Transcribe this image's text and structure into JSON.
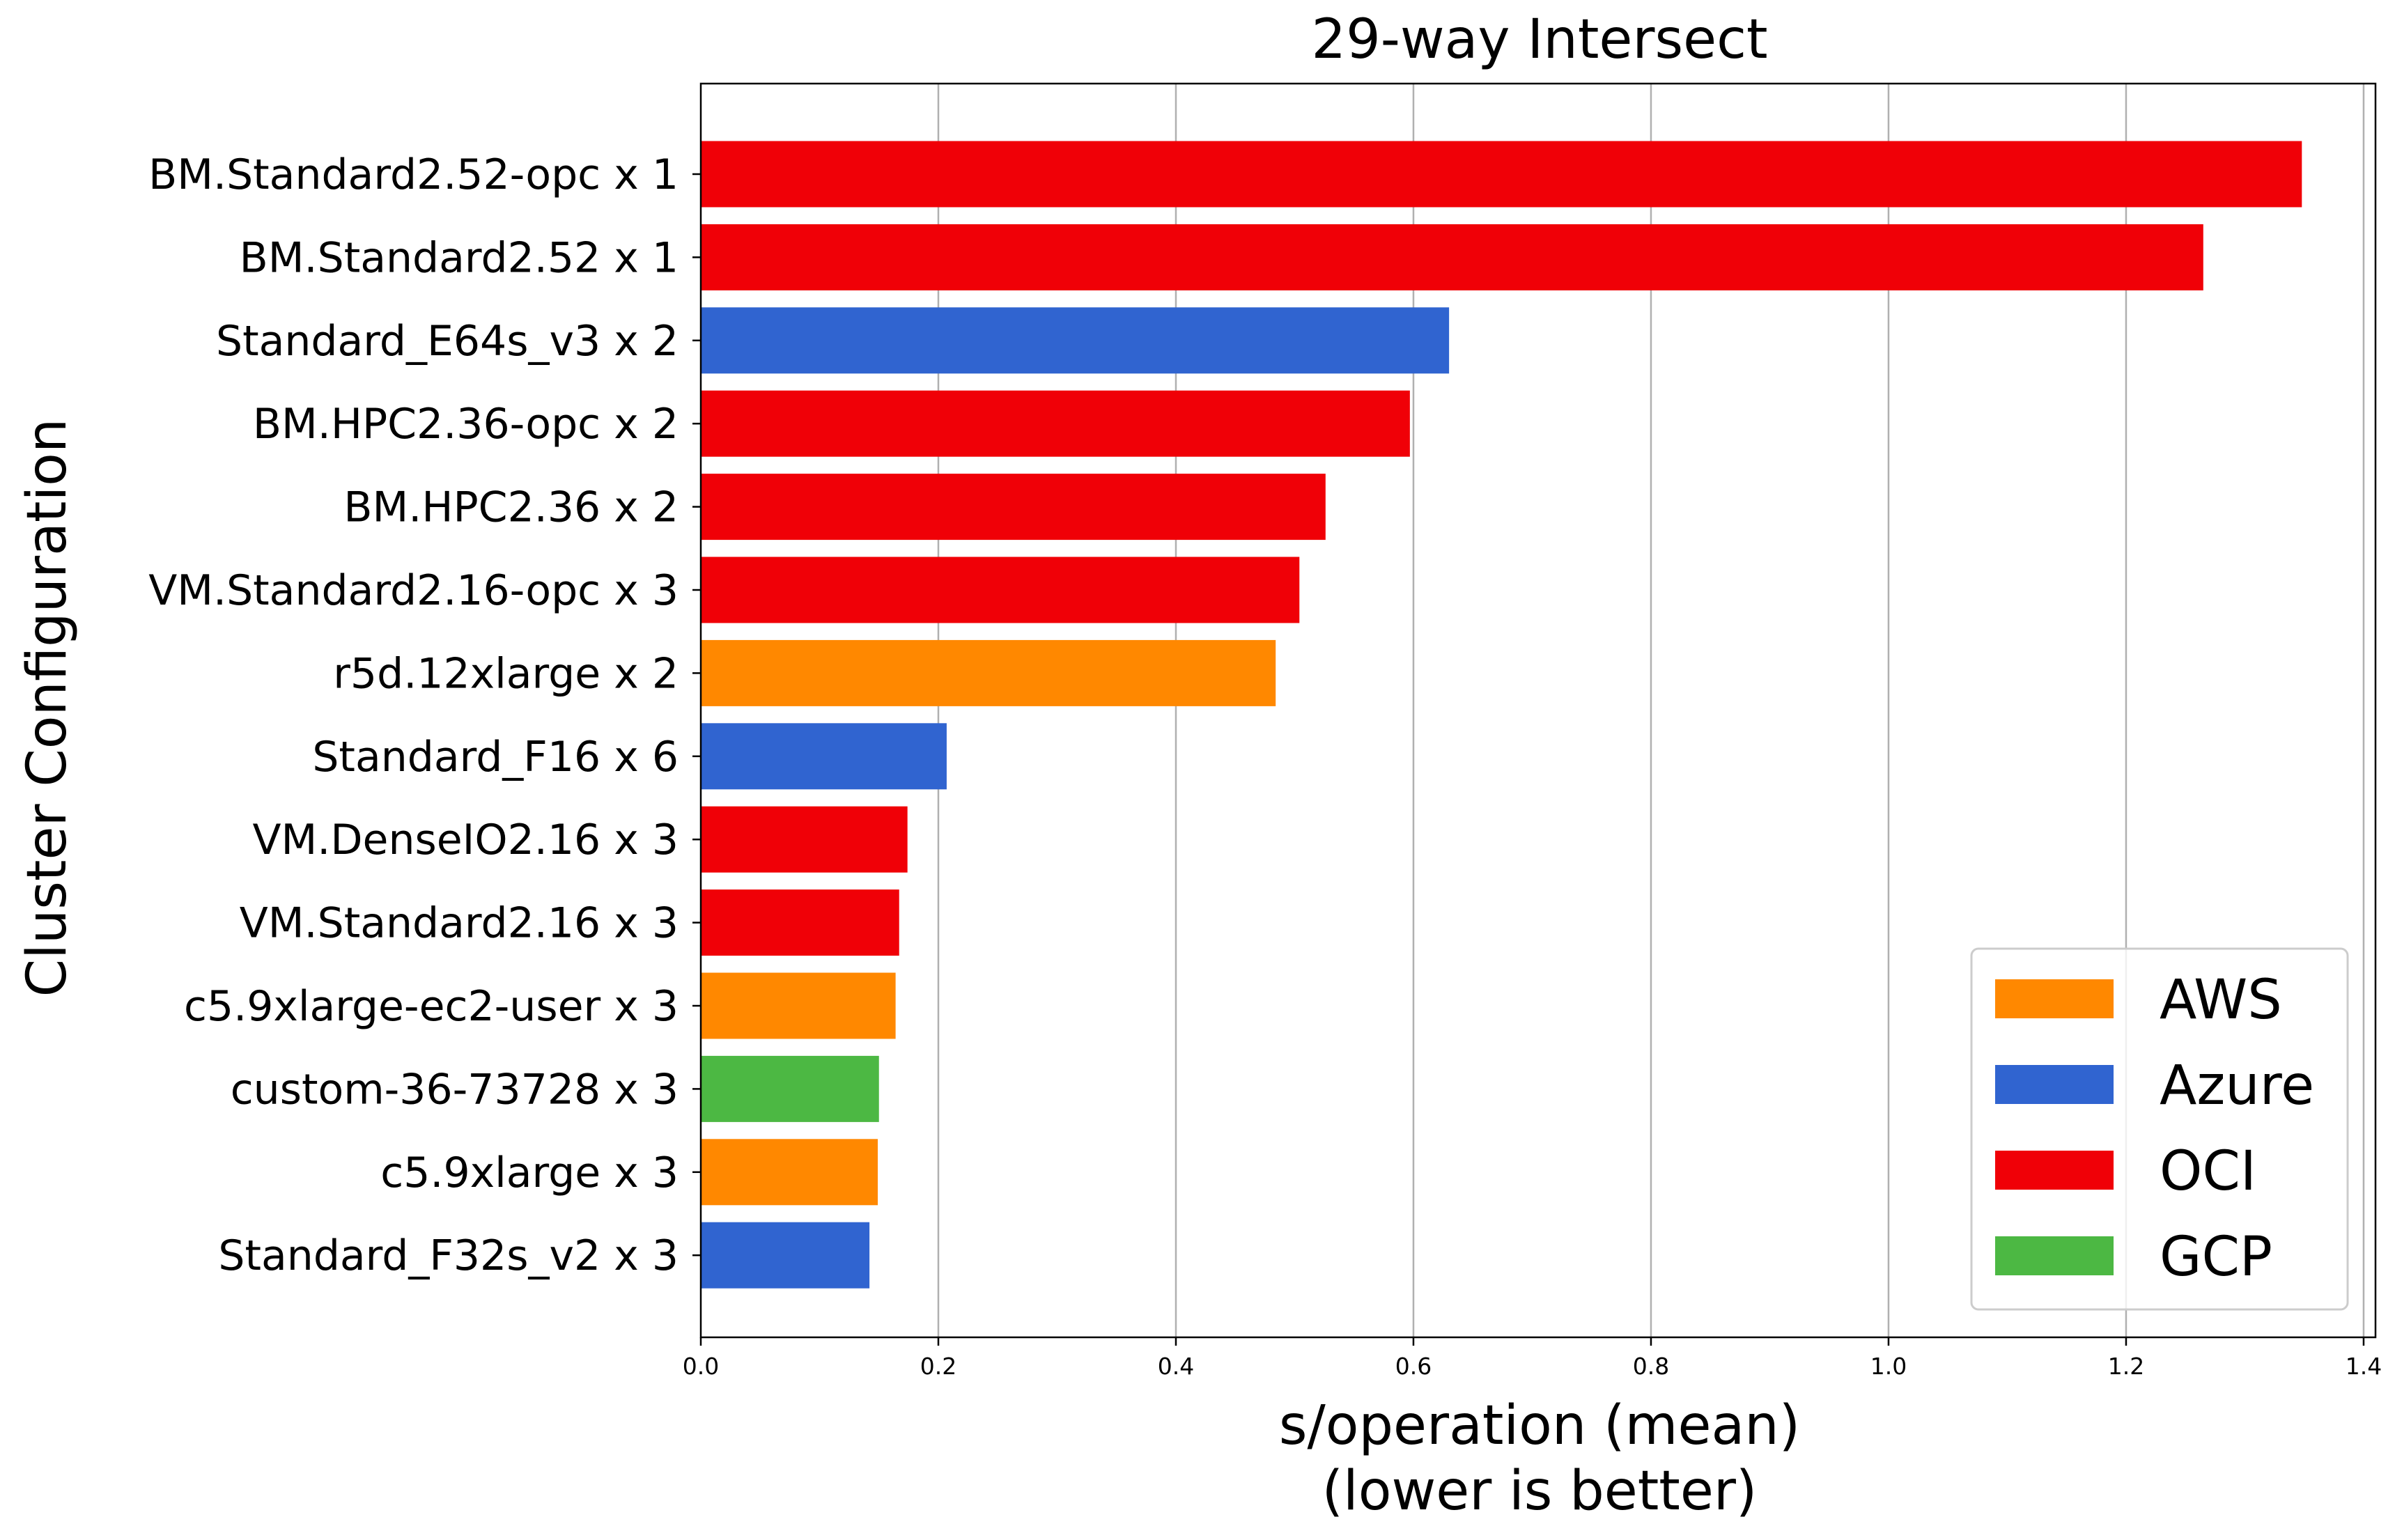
{
  "chart_data": {
    "type": "bar",
    "orientation": "horizontal",
    "title": "29-way Intersect",
    "xlabel": [
      "s/operation (mean)",
      "(lower is better)"
    ],
    "ylabel": "Cluster Configuration",
    "xlim": [
      0,
      1.41
    ],
    "xticks": [
      "0.0",
      "0.2",
      "0.4",
      "0.6",
      "0.8",
      "1.0",
      "1.2",
      "1.4"
    ],
    "grid": "x",
    "legend_position": "lower-right",
    "legend": [
      {
        "name": "AWS",
        "color": "#FF8800"
      },
      {
        "name": "Azure",
        "color": "#3064D0"
      },
      {
        "name": "OCI",
        "color": "#F00007"
      },
      {
        "name": "GCP",
        "color": "#4CB843"
      }
    ],
    "categories": [
      "BM.Standard2.52-opc x 1",
      "BM.Standard2.52 x 1",
      "Standard_E64s_v3 x 2",
      "BM.HPC2.36-opc x 2",
      "BM.HPC2.36 x 2",
      "VM.Standard2.16-opc x 3",
      "r5d.12xlarge x 2",
      "Standard_F16 x 6",
      "VM.DenseIO2.16 x 3",
      "VM.Standard2.16 x 3",
      "c5.9xlarge-ec2-user x 3",
      "custom-36-73728 x 3",
      "c5.9xlarge x 3",
      "Standard_F32s_v2 x 3"
    ],
    "values": [
      1.348,
      1.265,
      0.63,
      0.597,
      0.526,
      0.504,
      0.484,
      0.207,
      0.174,
      0.167,
      0.164,
      0.15,
      0.149,
      0.142
    ],
    "providers": [
      "OCI",
      "OCI",
      "Azure",
      "OCI",
      "OCI",
      "OCI",
      "AWS",
      "Azure",
      "OCI",
      "OCI",
      "AWS",
      "GCP",
      "AWS",
      "Azure"
    ]
  }
}
